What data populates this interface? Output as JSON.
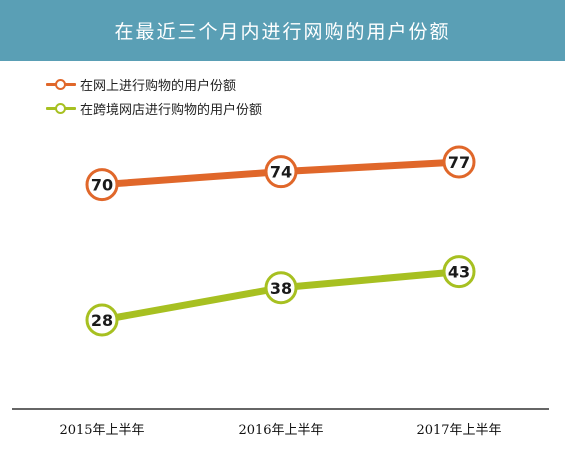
{
  "colors": {
    "header_bg": "#5a9fb5",
    "series_online": "#e0672a",
    "series_crossborder": "#a7c021",
    "axis": "#333333"
  },
  "chart_data": {
    "type": "line",
    "title": "在最近三个月内进行网购的用户份额",
    "xlabel": "",
    "ylabel": "",
    "x": [
      "2015年上半年",
      "2016年上半年",
      "2017年上半年"
    ],
    "series": [
      {
        "name": "在网上进行购物的用户份额",
        "values": [
          70,
          74,
          77
        ],
        "color": "#e0672a"
      },
      {
        "name": "在跨境网店进行购物的用户份额",
        "values": [
          28,
          38,
          43
        ],
        "color": "#a7c021"
      }
    ],
    "ylim": [
      0,
      100
    ],
    "grid": false,
    "legend": "top-left",
    "data_labels": true
  }
}
